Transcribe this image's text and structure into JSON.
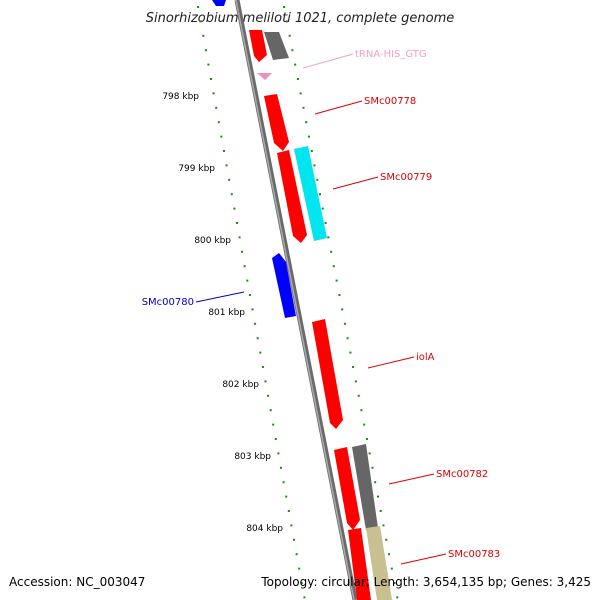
{
  "title": "Sinorhizobium meliloti 1021, complete genome",
  "footer": {
    "accession": "Accession: NC_003047",
    "summary": "Topology: circular; Length: 3,654,135 bp; Genes: 3,425"
  },
  "ticks": [
    {
      "label": "798 kbp"
    },
    {
      "label": "799 kbp"
    },
    {
      "label": "800 kbp"
    },
    {
      "label": "801 kbp"
    },
    {
      "label": "802 kbp"
    },
    {
      "label": "803 kbp"
    },
    {
      "label": "804 kbp"
    }
  ],
  "genes": [
    {
      "label": "tRNA-HIS_GTG",
      "color": "#f0a0c8"
    },
    {
      "label": "SMc00778",
      "color": "#dd0000"
    },
    {
      "label": "SMc00779",
      "color": "#dd0000"
    },
    {
      "label": "SMc00780",
      "color": "#0000cc"
    },
    {
      "label": "iolA",
      "color": "#dd0000"
    },
    {
      "label": "SMc00782",
      "color": "#dd0000"
    },
    {
      "label": "SMc00783",
      "color": "#dd0000"
    }
  ],
  "colors": {
    "backbone": "#888888",
    "tick_dots": "#1a8a1a",
    "red_feature": "#ff0000",
    "cyan_feature": "#00e5ee",
    "blue_feature": "#0000ff",
    "gray_feature": "#666666",
    "tan_feature": "#c8c090",
    "pink_feature": "#f090c0"
  }
}
